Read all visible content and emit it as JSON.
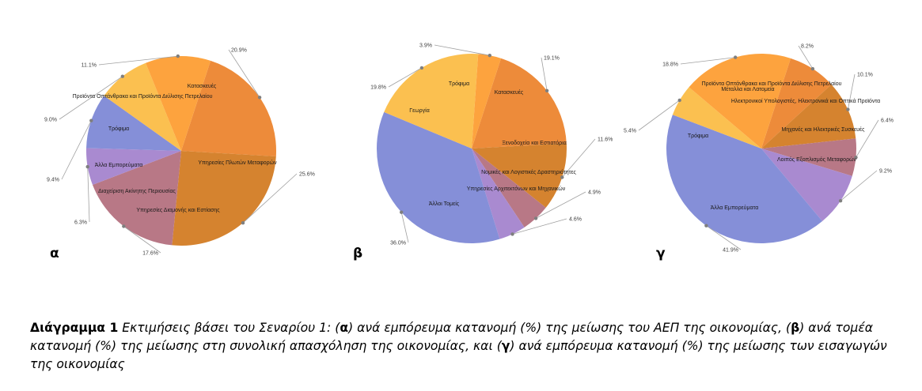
{
  "chart_data": [
    {
      "type": "pie",
      "letter": "α",
      "slices": [
        {
          "label": "Κατασκευές",
          "value": 20.9,
          "value_label": "20.9%",
          "color": "#ED8B3A"
        },
        {
          "label": "Υπηρεσίες Πλωτών Μεταφορών",
          "value": 25.6,
          "value_label": "25.6%",
          "color": "#D5832F"
        },
        {
          "label": "Υπηρεσίες Διαμονής και Εστίασης",
          "value": 17.6,
          "value_label": "17.6%",
          "color": "#B87886"
        },
        {
          "label": "Διαχείριση Ακίνητης Περιουσίας",
          "value": 6.3,
          "value_label": "6.3%",
          "color": "#A98AD0"
        },
        {
          "label": "Άλλα Εμπορεύματα",
          "value": 9.4,
          "value_label": "9.4%",
          "color": "#858FD8"
        },
        {
          "label": "Τρόφιμα",
          "value": 9.0,
          "value_label": "9.0%",
          "color": "#FBC050"
        },
        {
          "label": "Προϊόντα Οπτάνθρακα και Προϊόντα Διύλισης Πετρελαίου",
          "value": 11.1,
          "value_label": "11.1%",
          "color": "#FDA33E"
        }
      ]
    },
    {
      "type": "pie",
      "letter": "β",
      "slices": [
        {
          "label": "Κατασκευές",
          "value": 19.1,
          "value_label": "19.1%",
          "color": "#ED8B3A"
        },
        {
          "label": "Ξενοδοχεία και Εστιατόρια",
          "value": 11.6,
          "value_label": "11.6%",
          "color": "#D5832F"
        },
        {
          "label": "Νομικές και Λογιστικές Δραστηριότητες",
          "value": 4.9,
          "value_label": "4.9%",
          "color": "#B87886"
        },
        {
          "label": "Υπηρεσίες Αρχιτεκτόνων και Μηχανικών",
          "value": 4.6,
          "value_label": "4.6%",
          "color": "#A98AD0"
        },
        {
          "label": "Άλλοι Τομείς",
          "value": 36.0,
          "value_label": "36.0%",
          "color": "#858FD8"
        },
        {
          "label": "Γεωργία",
          "value": 19.8,
          "value_label": "19.8%",
          "color": "#FBC050"
        },
        {
          "label": "Τρόφιμα",
          "value": 3.9,
          "value_label": "3.9%",
          "color": "#FDA33E"
        }
      ]
    },
    {
      "type": "pie",
      "letter": "γ",
      "slices": [
        {
          "label": "Προϊόντα Οπτάνθρακα και Προϊόντα Διύλισης Πετρελαίου",
          "value": 8.2,
          "value_label": "8.2%",
          "color": "#ED8B3A"
        },
        {
          "label": "Ηλεκτρονικοί Υπολογιστές, Ηλεκτρονικά και Οπτικά Προϊόντα",
          "value": 10.1,
          "value_label": "10.1%",
          "color": "#D5832F"
        },
        {
          "label": "Μηχανές και Ηλεκτρικές Συσκευές",
          "value": 6.4,
          "value_label": "6.4%",
          "color": "#B87886"
        },
        {
          "label": "Λοιπός Εξοπλισμός Μεταφορών",
          "value": 9.2,
          "value_label": "9.2%",
          "color": "#A98AD0"
        },
        {
          "label": "Άλλα Εμπορεύματα",
          "value": 41.9,
          "value_label": "41.9%",
          "color": "#858FD8"
        },
        {
          "label": "Τρόφιμα",
          "value": 5.4,
          "value_label": "5.4%",
          "color": "#FBC050"
        },
        {
          "label": "Μέταλλα και Λατομεία",
          "value": 18.8,
          "value_label": "18.8%",
          "color": "#FDA33E"
        }
      ]
    }
  ],
  "caption": {
    "label": "Διάγραμμα 1",
    "p1": " Εκτιμήσεις βάσει του Σεναρίου 1: (",
    "a": "α",
    "p2": ") ανά εμπόρευμα κατανομή (%) της μείωσης του ΑΕΠ της οικονομίας,  (",
    "b": "β",
    "p3": ") ανά τομέα κατανομή (%) της μείωσης στη συνολική απασχόληση της οικονομίας, και (",
    "c": "γ",
    "p4": ") ανά εμπόρευμα κατανομή (%) της μείωσης των εισαγωγών της οικονομίας"
  }
}
